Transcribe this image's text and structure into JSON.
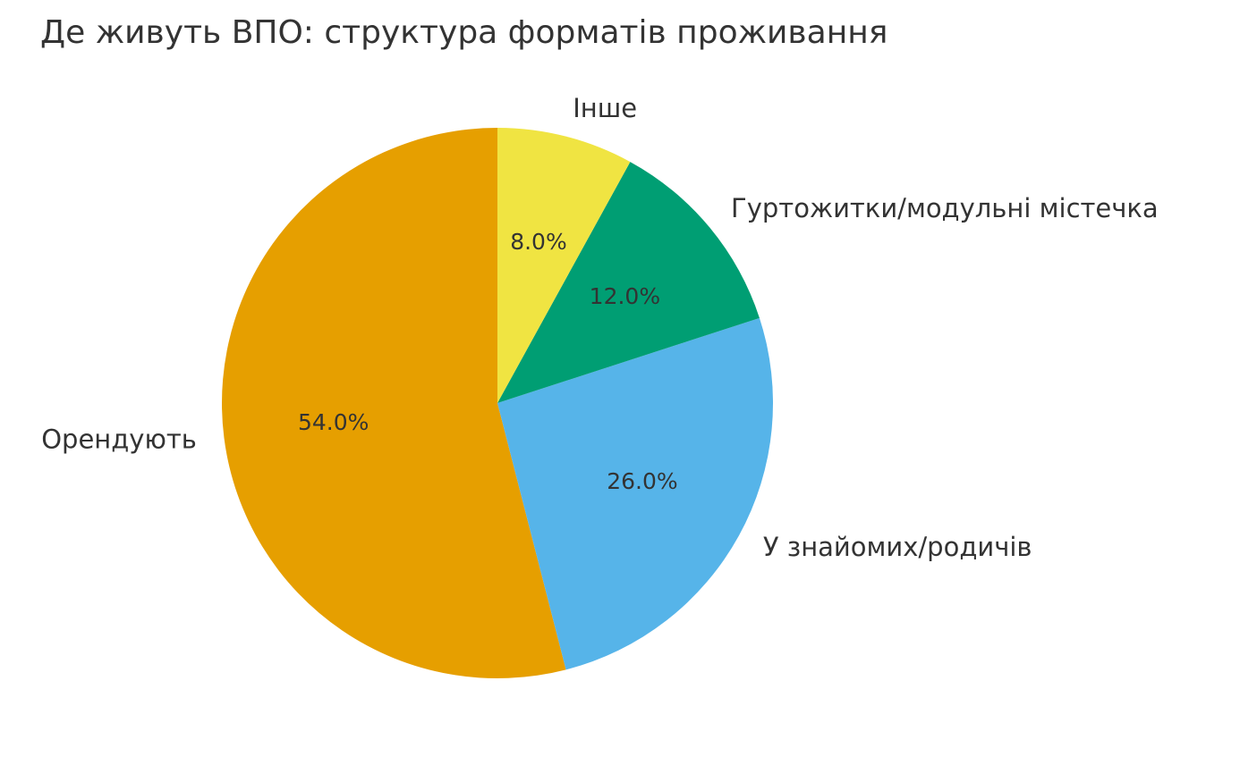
{
  "chart_data": {
    "type": "pie",
    "title": "Де живуть ВПО: структура форматів проживання",
    "categories": [
      "Орендують",
      "У знайомих/родичів",
      "Гуртожитки/модульні містечка",
      "Інше"
    ],
    "values": [
      54,
      26,
      12,
      8
    ],
    "value_labels": [
      "54.0%",
      "26.0%",
      "12.0%",
      "8.0%"
    ],
    "colors": [
      "#E69F00",
      "#56B4E9",
      "#009E73",
      "#F0E442"
    ]
  }
}
